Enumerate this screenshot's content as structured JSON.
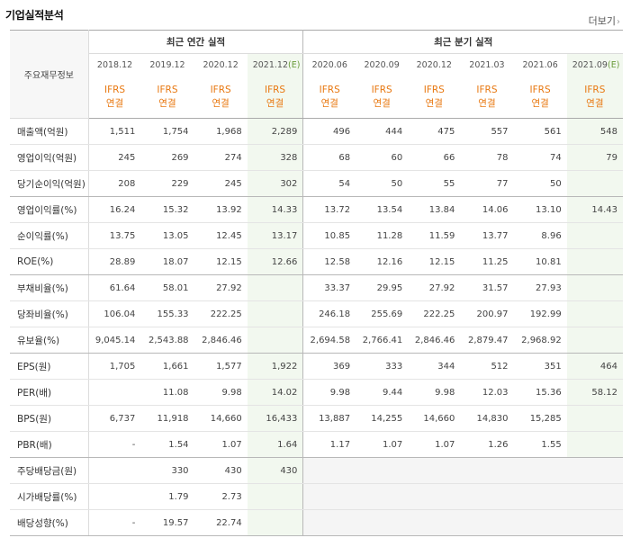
{
  "header": {
    "title": "기업실적분석",
    "more": "더보기",
    "more_arrow": "›"
  },
  "table": {
    "row_header_label": "주요재무정보",
    "group_annual": "최근 연간 실적",
    "group_quarter": "최근 분기 실적",
    "periods": [
      {
        "label": "2018.12",
        "est": ""
      },
      {
        "label": "2019.12",
        "est": ""
      },
      {
        "label": "2020.12",
        "est": ""
      },
      {
        "label": "2021.12",
        "est": "(E)"
      },
      {
        "label": "2020.06",
        "est": ""
      },
      {
        "label": "2020.09",
        "est": ""
      },
      {
        "label": "2020.12",
        "est": ""
      },
      {
        "label": "2021.03",
        "est": ""
      },
      {
        "label": "2021.06",
        "est": ""
      },
      {
        "label": "2021.09",
        "est": "(E)"
      }
    ],
    "std_line1": "IFRS",
    "std_line2": "연결",
    "rows": [
      {
        "label": "매출액(억원)",
        "values": [
          "1,511",
          "1,754",
          "1,968",
          "2,289",
          "496",
          "444",
          "475",
          "557",
          "561",
          "548"
        ]
      },
      {
        "label": "영업이익(억원)",
        "values": [
          "245",
          "269",
          "274",
          "328",
          "68",
          "60",
          "66",
          "78",
          "74",
          "79"
        ]
      },
      {
        "label": "당기순이익(억원)",
        "values": [
          "208",
          "229",
          "245",
          "302",
          "54",
          "50",
          "55",
          "77",
          "50",
          ""
        ]
      },
      {
        "label": "영업이익률(%)",
        "values": [
          "16.24",
          "15.32",
          "13.92",
          "14.33",
          "13.72",
          "13.54",
          "13.84",
          "14.06",
          "13.10",
          "14.43"
        ]
      },
      {
        "label": "순이익률(%)",
        "values": [
          "13.75",
          "13.05",
          "12.45",
          "13.17",
          "10.85",
          "11.28",
          "11.59",
          "13.77",
          "8.96",
          ""
        ]
      },
      {
        "label": "ROE(%)",
        "values": [
          "28.89",
          "18.07",
          "12.15",
          "12.66",
          "12.58",
          "12.16",
          "12.15",
          "11.25",
          "10.81",
          ""
        ]
      },
      {
        "label": "부채비율(%)",
        "values": [
          "61.64",
          "58.01",
          "27.92",
          "",
          "33.37",
          "29.95",
          "27.92",
          "31.57",
          "27.93",
          ""
        ]
      },
      {
        "label": "당좌비율(%)",
        "values": [
          "106.04",
          "155.33",
          "222.25",
          "",
          "246.18",
          "255.69",
          "222.25",
          "200.97",
          "192.99",
          ""
        ]
      },
      {
        "label": "유보율(%)",
        "values": [
          "9,045.14",
          "2,543.88",
          "2,846.46",
          "",
          "2,694.58",
          "2,766.41",
          "2,846.46",
          "2,879.47",
          "2,968.92",
          ""
        ]
      },
      {
        "label": "EPS(원)",
        "values": [
          "1,705",
          "1,661",
          "1,577",
          "1,922",
          "369",
          "333",
          "344",
          "512",
          "351",
          "464"
        ]
      },
      {
        "label": "PER(배)",
        "values": [
          "",
          "11.08",
          "9.98",
          "14.02",
          "9.98",
          "9.44",
          "9.98",
          "12.03",
          "15.36",
          "58.12"
        ]
      },
      {
        "label": "BPS(원)",
        "values": [
          "6,737",
          "11,918",
          "14,660",
          "16,433",
          "13,887",
          "14,255",
          "14,660",
          "14,830",
          "15,285",
          ""
        ]
      },
      {
        "label": "PBR(배)",
        "values": [
          "-",
          "1.54",
          "1.07",
          "1.64",
          "1.17",
          "1.07",
          "1.07",
          "1.26",
          "1.55",
          ""
        ]
      },
      {
        "label": "주당배당금(원)",
        "values": [
          "",
          "330",
          "430",
          "430",
          "",
          "",
          "",
          "",
          "",
          ""
        ]
      },
      {
        "label": "시가배당률(%)",
        "values": [
          "",
          "1.79",
          "2.73",
          "",
          "",
          "",
          "",
          "",
          "",
          ""
        ]
      },
      {
        "label": "배당성향(%)",
        "values": [
          "-",
          "19.57",
          "22.74",
          "",
          "",
          "",
          "",
          "",
          "",
          ""
        ]
      }
    ]
  },
  "colors": {
    "ifrs_orange": "#e87811",
    "estimate_green": "#6a9c3a",
    "estimate_bg": "#f2f8ef",
    "label_bg": "#f7f7f7"
  }
}
